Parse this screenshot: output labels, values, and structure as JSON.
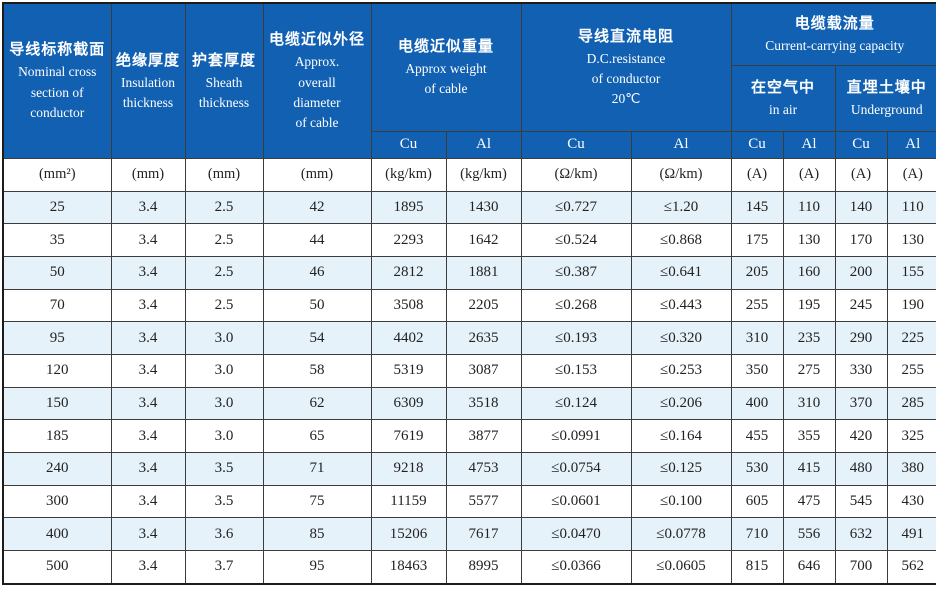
{
  "colors": {
    "header_bg": "#1160b2",
    "row_alt_bg": "#e6f2fa",
    "border": "#3c3c3c",
    "outer_border": "#1c1c1c",
    "header_text": "#ffffff",
    "body_text": "#222222"
  },
  "table": {
    "columns": [
      {
        "zh": "导线标称截面",
        "en": "Nominal cross\nsection of\nconductor"
      },
      {
        "zh": "绝缘厚度",
        "en": "Insulation\nthickness"
      },
      {
        "zh": "护套厚度",
        "en": "Sheath\nthickness"
      },
      {
        "zh": "电缆近似外径",
        "en": "Approx.\noverall\ndiameter\nof cable"
      }
    ],
    "groups": {
      "weight": {
        "zh": "电缆近似重量",
        "en": "Approx weight\nof cable"
      },
      "dc_resistance": {
        "zh": "导线直流电阻",
        "en": "D.C.resistance\nof conductor\n20℃"
      },
      "capacity": {
        "zh": "电缆载流量",
        "en": "Current-carrying capacity"
      },
      "in_air": {
        "zh": "在空气中",
        "en": "in air"
      },
      "underground": {
        "zh": "直埋土壤中",
        "en": "Underground"
      }
    },
    "metal_labels": [
      "Cu",
      "Al",
      "Cu",
      "Al",
      "Cu",
      "Al",
      "Cu",
      "Al"
    ],
    "units": [
      "(mm²)",
      "(mm)",
      "(mm)",
      "(mm)",
      "(kg/km)",
      "(kg/km)",
      "(Ω/km)",
      "(Ω/km)",
      "(A)",
      "(A)",
      "(A)",
      "(A)"
    ],
    "rows": [
      [
        "25",
        "3.4",
        "2.5",
        "42",
        "1895",
        "1430",
        "≤0.727",
        "≤1.20",
        "145",
        "110",
        "140",
        "110"
      ],
      [
        "35",
        "3.4",
        "2.5",
        "44",
        "2293",
        "1642",
        "≤0.524",
        "≤0.868",
        "175",
        "130",
        "170",
        "130"
      ],
      [
        "50",
        "3.4",
        "2.5",
        "46",
        "2812",
        "1881",
        "≤0.387",
        "≤0.641",
        "205",
        "160",
        "200",
        "155"
      ],
      [
        "70",
        "3.4",
        "2.5",
        "50",
        "3508",
        "2205",
        "≤0.268",
        "≤0.443",
        "255",
        "195",
        "245",
        "190"
      ],
      [
        "95",
        "3.4",
        "3.0",
        "54",
        "4402",
        "2635",
        "≤0.193",
        "≤0.320",
        "310",
        "235",
        "290",
        "225"
      ],
      [
        "120",
        "3.4",
        "3.0",
        "58",
        "5319",
        "3087",
        "≤0.153",
        "≤0.253",
        "350",
        "275",
        "330",
        "255"
      ],
      [
        "150",
        "3.4",
        "3.0",
        "62",
        "6309",
        "3518",
        "≤0.124",
        "≤0.206",
        "400",
        "310",
        "370",
        "285"
      ],
      [
        "185",
        "3.4",
        "3.0",
        "65",
        "7619",
        "3877",
        "≤0.0991",
        "≤0.164",
        "455",
        "355",
        "420",
        "325"
      ],
      [
        "240",
        "3.4",
        "3.5",
        "71",
        "9218",
        "4753",
        "≤0.0754",
        "≤0.125",
        "530",
        "415",
        "480",
        "380"
      ],
      [
        "300",
        "3.4",
        "3.5",
        "75",
        "11159",
        "5577",
        "≤0.0601",
        "≤0.100",
        "605",
        "475",
        "545",
        "430"
      ],
      [
        "400",
        "3.4",
        "3.6",
        "85",
        "15206",
        "7617",
        "≤0.0470",
        "≤0.0778",
        "710",
        "556",
        "632",
        "491"
      ],
      [
        "500",
        "3.4",
        "3.7",
        "95",
        "18463",
        "8995",
        "≤0.0366",
        "≤0.0605",
        "815",
        "646",
        "700",
        "562"
      ]
    ]
  }
}
